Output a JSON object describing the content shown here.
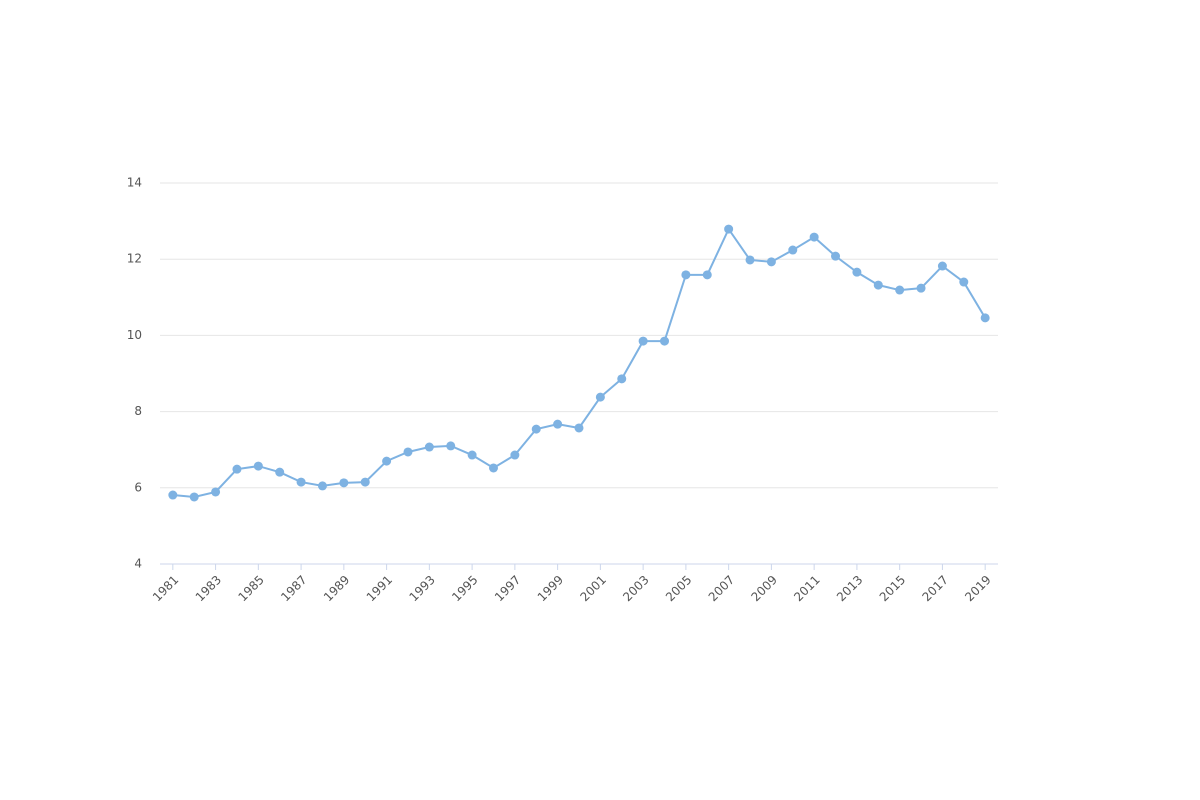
{
  "chart_data": {
    "type": "line",
    "x": [
      1981,
      1982,
      1983,
      1984,
      1985,
      1986,
      1987,
      1988,
      1989,
      1990,
      1991,
      1992,
      1993,
      1994,
      1995,
      1996,
      1997,
      1998,
      1999,
      2000,
      2001,
      2002,
      2003,
      2004,
      2005,
      2006,
      2007,
      2008,
      2009,
      2010,
      2011,
      2012,
      2013,
      2014,
      2015,
      2016,
      2017,
      2018,
      2019
    ],
    "series": [
      {
        "color": "#7eb2e2",
        "values": [
          5.81,
          5.76,
          5.89,
          6.49,
          6.57,
          6.41,
          6.15,
          6.05,
          6.13,
          6.15,
          6.7,
          6.94,
          7.07,
          7.1,
          6.86,
          6.52,
          6.86,
          7.54,
          7.67,
          7.57,
          8.38,
          8.86,
          9.85,
          9.85,
          11.59,
          11.59,
          12.79,
          11.98,
          11.93,
          12.24,
          12.58,
          12.08,
          11.66,
          11.32,
          11.19,
          11.24,
          11.82,
          11.4,
          10.46
        ]
      }
    ],
    "xlim": [
      1980.4,
      2019.6
    ],
    "xticks": [
      1981,
      1983,
      1985,
      1987,
      1989,
      1991,
      1993,
      1995,
      1997,
      1999,
      2001,
      2003,
      2005,
      2007,
      2009,
      2011,
      2013,
      2015,
      2017,
      2019
    ],
    "ylim": [
      4,
      14
    ],
    "yticks": [
      4,
      6,
      8,
      10,
      12,
      14
    ],
    "grid": true
  }
}
